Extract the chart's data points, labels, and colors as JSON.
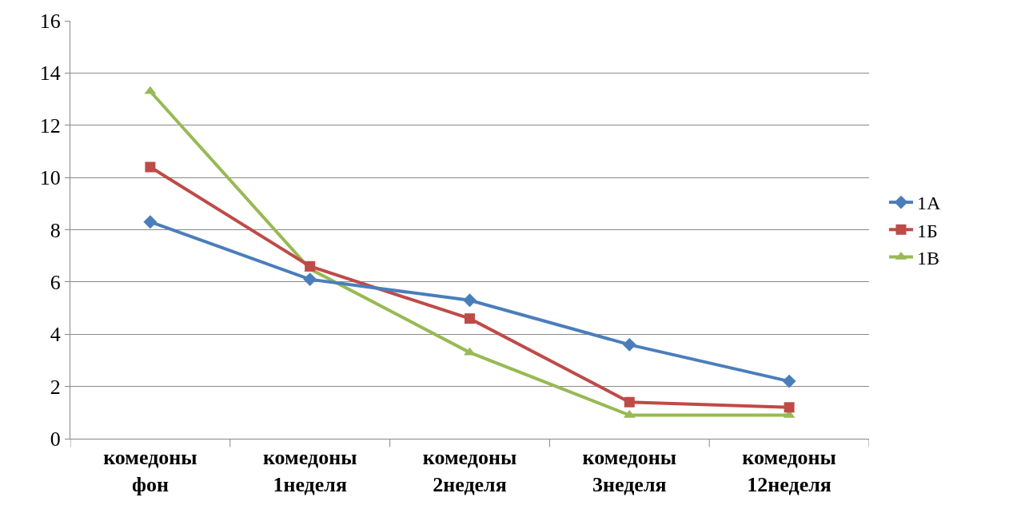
{
  "chart_data": {
    "type": "line",
    "categories": [
      "комедоны фон",
      "комедоны 1неделя",
      "комедоны 2неделя",
      "комедоны 3неделя",
      "комедоны 12неделя"
    ],
    "series": [
      {
        "name": "1А",
        "color": "#4a7ebb",
        "marker": "diamond",
        "values": [
          8.3,
          6.1,
          5.3,
          3.6,
          2.2
        ]
      },
      {
        "name": "1Б",
        "color": "#be4b48",
        "marker": "square",
        "values": [
          10.4,
          6.6,
          4.6,
          1.4,
          1.2
        ]
      },
      {
        "name": "1В",
        "color": "#98b954",
        "marker": "triangle",
        "values": [
          13.3,
          6.5,
          3.3,
          0.9,
          0.9
        ]
      }
    ],
    "ylim": [
      0,
      16
    ],
    "yticks": [
      0,
      2,
      4,
      6,
      8,
      10,
      12,
      14,
      16
    ],
    "grid": "y",
    "legend": "right"
  }
}
